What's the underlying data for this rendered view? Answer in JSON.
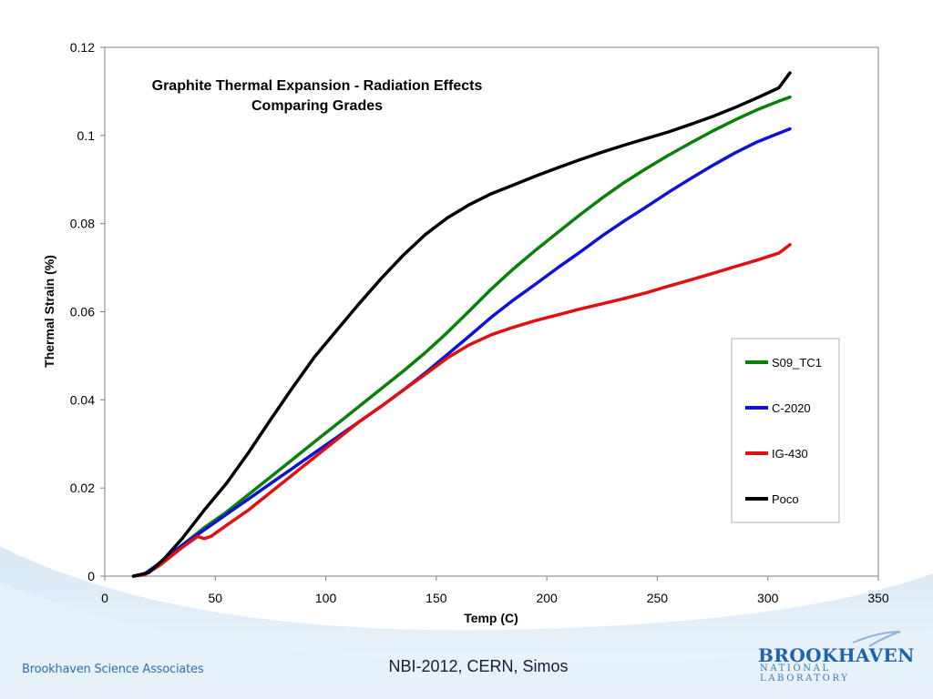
{
  "slide": {
    "footer_left": "Brookhaven Science Associates",
    "footer_center": "NBI-2012, CERN, Simos",
    "logo_main": "BROOKHAVEN",
    "logo_sub": "NATIONAL LABORATORY"
  },
  "colors": {
    "S09_TC1": "#0a800a",
    "C-2020": "#1010d8",
    "IG-430": "#e01010",
    "Poco": "#000000",
    "logo_blue": "#1f63a8"
  },
  "chart_data": {
    "type": "line",
    "title": "Graphite Thermal Expansion - Radiation Effects",
    "subtitle": "Comparing Grades",
    "xlabel": "Temp (C)",
    "ylabel": "Thermal Strain (%)",
    "xlim": [
      0,
      350
    ],
    "ylim": [
      0,
      0.12
    ],
    "xticks": [
      0,
      50,
      100,
      150,
      200,
      250,
      300,
      350
    ],
    "xtick_labels": [
      "0",
      "50",
      "100",
      "150",
      "200",
      "250",
      "300",
      "350"
    ],
    "yticks": [
      0,
      0.02,
      0.04,
      0.06,
      0.08,
      0.1,
      0.12
    ],
    "ytick_labels": [
      "0",
      "0.02",
      "0.04",
      "0.06",
      "0.08",
      "0.1",
      "0.12"
    ],
    "grid": false,
    "legend_position": "right",
    "series": [
      {
        "name": "S09_TC1",
        "color": "#0a800a",
        "x": [
          13,
          18,
          25,
          35,
          45,
          55,
          65,
          75,
          85,
          95,
          105,
          115,
          125,
          135,
          145,
          155,
          165,
          175,
          185,
          195,
          205,
          215,
          225,
          235,
          245,
          255,
          265,
          275,
          285,
          295,
          305,
          310
        ],
        "y": [
          0,
          0.0005,
          0.003,
          0.007,
          0.011,
          0.0145,
          0.0185,
          0.0225,
          0.0265,
          0.0305,
          0.0345,
          0.0385,
          0.0425,
          0.0465,
          0.0507,
          0.0553,
          0.0602,
          0.0652,
          0.0698,
          0.074,
          0.078,
          0.082,
          0.0858,
          0.0893,
          0.0925,
          0.0955,
          0.0983,
          0.101,
          0.1035,
          0.1058,
          0.1078,
          0.1087
        ]
      },
      {
        "name": "C-2020",
        "color": "#1010d8",
        "x": [
          13,
          18,
          25,
          35,
          45,
          55,
          65,
          75,
          85,
          95,
          105,
          115,
          125,
          135,
          145,
          155,
          165,
          175,
          185,
          195,
          205,
          215,
          225,
          235,
          245,
          255,
          265,
          275,
          285,
          295,
          305,
          310
        ],
        "y": [
          0,
          0.0005,
          0.003,
          0.007,
          0.0105,
          0.014,
          0.0175,
          0.021,
          0.0245,
          0.028,
          0.0315,
          0.035,
          0.0385,
          0.0422,
          0.0461,
          0.0503,
          0.0545,
          0.0588,
          0.0627,
          0.0663,
          0.07,
          0.0735,
          0.0772,
          0.0806,
          0.0838,
          0.0871,
          0.0902,
          0.0932,
          0.096,
          0.0985,
          0.1005,
          0.1015
        ]
      },
      {
        "name": "IG-430",
        "color": "#e01010",
        "x": [
          13,
          18,
          25,
          35,
          42,
          45,
          48,
          55,
          65,
          75,
          85,
          95,
          105,
          115,
          125,
          135,
          145,
          155,
          165,
          175,
          185,
          195,
          205,
          215,
          225,
          235,
          245,
          255,
          265,
          275,
          285,
          295,
          305,
          310
        ],
        "y": [
          0,
          0.0003,
          0.0025,
          0.0065,
          0.009,
          0.0085,
          0.009,
          0.0115,
          0.015,
          0.019,
          0.023,
          0.027,
          0.031,
          0.035,
          0.0385,
          0.0422,
          0.0458,
          0.0495,
          0.0525,
          0.0548,
          0.0565,
          0.058,
          0.0593,
          0.0606,
          0.0618,
          0.063,
          0.0643,
          0.0658,
          0.0672,
          0.0687,
          0.0702,
          0.0717,
          0.0733,
          0.0752
        ]
      },
      {
        "name": "Poco",
        "color": "#000000",
        "x": [
          13,
          20,
          27,
          35,
          45,
          55,
          65,
          75,
          85,
          95,
          105,
          115,
          125,
          135,
          145,
          155,
          165,
          175,
          185,
          195,
          205,
          215,
          225,
          235,
          245,
          255,
          265,
          275,
          285,
          295,
          305,
          310
        ],
        "y": [
          0,
          0.0008,
          0.004,
          0.0085,
          0.015,
          0.021,
          0.028,
          0.0355,
          0.0428,
          0.0498,
          0.0558,
          0.0618,
          0.0675,
          0.0728,
          0.0775,
          0.0813,
          0.0843,
          0.0868,
          0.0888,
          0.0908,
          0.0927,
          0.0945,
          0.0962,
          0.0978,
          0.0993,
          0.1008,
          0.1025,
          0.1043,
          0.1063,
          0.1085,
          0.1108,
          0.1142
        ]
      }
    ]
  }
}
